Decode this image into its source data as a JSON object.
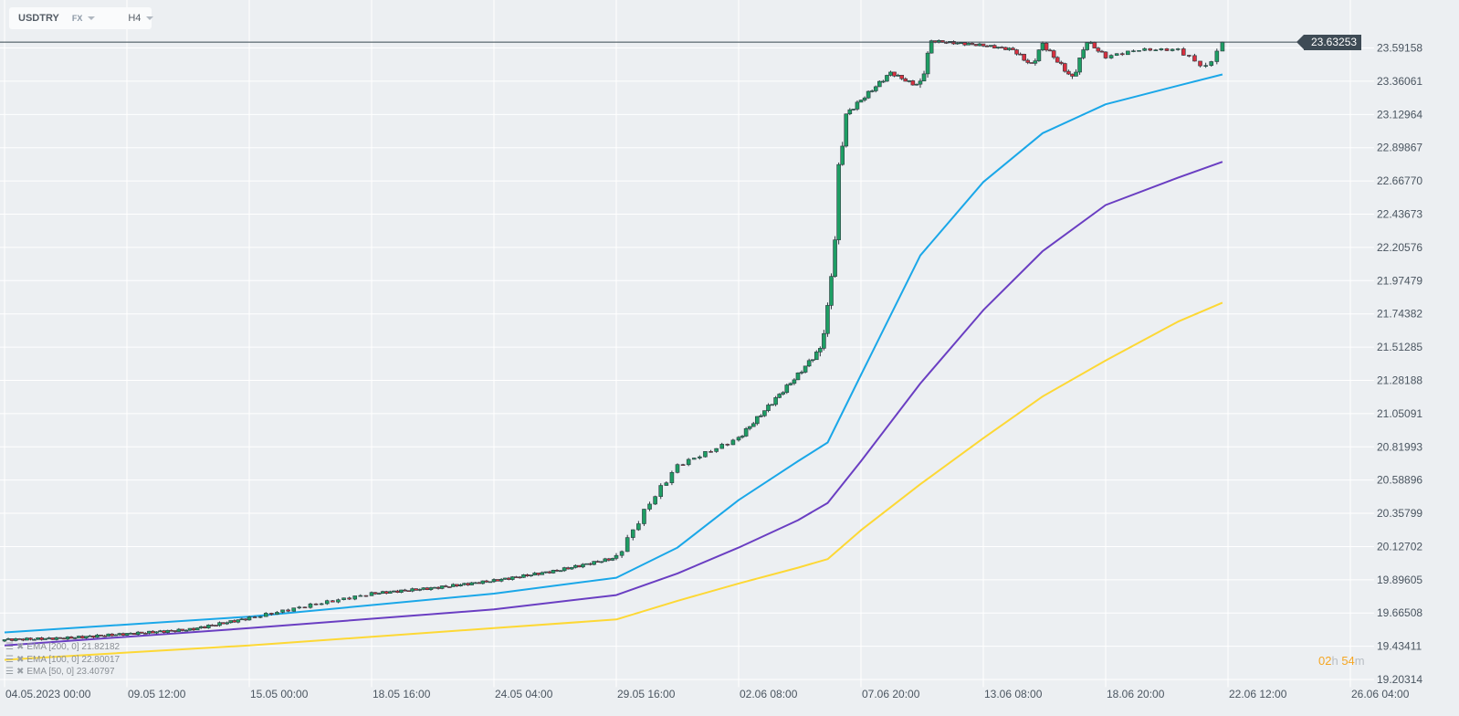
{
  "header": {
    "symbol": "USDTRY",
    "market": "FX",
    "timeframe": "H4"
  },
  "current_price": "23.63253",
  "countdown": {
    "hours": "02",
    "h_unit": "h",
    "minutes": "54",
    "m_unit": "m"
  },
  "legend": [
    {
      "label": "EMA [200, 0] 21.82182"
    },
    {
      "label": "EMA [100, 0] 22.80017"
    },
    {
      "label": "EMA [50, 0] 23.40797"
    }
  ],
  "colors": {
    "up": "#1e9e64",
    "down": "#d8303f",
    "ema50": "#1aa7e8",
    "ema100": "#6a3ec2",
    "ema200": "#fdd835",
    "price_line": "#37474f",
    "grid": "#ffffff",
    "background": "#eceff2"
  },
  "chart_data": {
    "type": "candlestick",
    "ylim": [
      19.15,
      23.925
    ],
    "y_ticks": [
      "23.59158",
      "23.36061",
      "23.12964",
      "22.89867",
      "22.66770",
      "22.43673",
      "22.20576",
      "21.97479",
      "21.74382",
      "21.51285",
      "21.28188",
      "21.05091",
      "20.81993",
      "20.58896",
      "20.35799",
      "20.12702",
      "19.89605",
      "19.66508",
      "19.43411",
      "19.20314"
    ],
    "x_ticks": [
      {
        "label": "04.05.2023  00:00",
        "date": "2023-05-04T00:00"
      },
      {
        "label": "09.05  12:00",
        "date": "2023-05-09T12:00"
      },
      {
        "label": "15.05  00:00",
        "date": "2023-05-15T00:00"
      },
      {
        "label": "18.05  16:00",
        "date": "2023-05-18T16:00"
      },
      {
        "label": "24.05  04:00",
        "date": "2023-05-24T04:00"
      },
      {
        "label": "29.05  16:00",
        "date": "2023-05-29T16:00"
      },
      {
        "label": "02.06  08:00",
        "date": "2023-06-02T08:00"
      },
      {
        "label": "07.06  20:00",
        "date": "2023-06-07T20:00"
      },
      {
        "label": "13.06  08:00",
        "date": "2023-06-13T08:00"
      },
      {
        "label": "18.06  20:00",
        "date": "2023-06-18T20:00"
      },
      {
        "label": "22.06  12:00",
        "date": "2023-06-22T12:00"
      },
      {
        "label": "26.06  04:00",
        "date": "2023-06-26T04:00"
      }
    ],
    "close_path": [
      [
        "2023-05-04T00:00",
        19.48
      ],
      [
        "2023-05-06T16:00",
        19.49
      ],
      [
        "2023-05-09T12:00",
        19.52
      ],
      [
        "2023-05-12T08:00",
        19.55
      ],
      [
        "2023-05-15T00:00",
        19.63
      ],
      [
        "2023-05-16T20:00",
        19.72
      ],
      [
        "2023-05-18T16:00",
        19.8
      ],
      [
        "2023-05-21T12:00",
        19.84
      ],
      [
        "2023-05-24T04:00",
        19.89
      ],
      [
        "2023-05-27T00:00",
        19.96
      ],
      [
        "2023-05-29T16:00",
        20.05
      ],
      [
        "2023-05-30T16:00",
        20.43
      ],
      [
        "2023-05-31T12:00",
        20.69
      ],
      [
        "2023-06-02T08:00",
        20.88
      ],
      [
        "2023-06-03T16:00",
        21.1
      ],
      [
        "2023-06-05T00:00",
        21.32
      ],
      [
        "2023-06-06T00:00",
        21.5
      ],
      [
        "2023-06-06T08:00",
        21.77
      ],
      [
        "2023-06-06T16:00",
        22.27
      ],
      [
        "2023-06-06T20:00",
        22.75
      ],
      [
        "2023-06-07T04:00",
        23.13
      ],
      [
        "2023-06-07T20:00",
        23.23
      ],
      [
        "2023-06-09T04:00",
        23.42
      ],
      [
        "2023-06-10T04:00",
        23.34
      ],
      [
        "2023-06-10T12:00",
        23.34
      ],
      [
        "2023-06-11T00:00",
        23.64
      ],
      [
        "2023-06-13T08:00",
        23.61
      ],
      [
        "2023-06-14T16:00",
        23.58
      ],
      [
        "2023-06-15T12:00",
        23.47
      ],
      [
        "2023-06-16T00:00",
        23.62
      ],
      [
        "2023-06-17T08:00",
        23.38
      ],
      [
        "2023-06-18T00:00",
        23.64
      ],
      [
        "2023-06-18T20:00",
        23.53
      ],
      [
        "2023-06-19T20:00",
        23.58
      ],
      [
        "2023-06-21T00:00",
        23.58
      ],
      [
        "2023-06-21T20:00",
        23.45
      ],
      [
        "2023-06-22T08:00",
        23.63253
      ]
    ],
    "series": [
      {
        "name": "EMA [50, 0]",
        "color_key": "ema50",
        "points": [
          [
            "2023-05-04T00:00",
            19.53
          ],
          [
            "2023-05-15T00:00",
            19.64
          ],
          [
            "2023-05-24T04:00",
            19.8
          ],
          [
            "2023-05-29T16:00",
            19.91
          ],
          [
            "2023-05-31T12:00",
            20.12
          ],
          [
            "2023-06-02T08:00",
            20.45
          ],
          [
            "2023-06-05T00:00",
            20.72
          ],
          [
            "2023-06-06T08:00",
            20.85
          ],
          [
            "2023-06-07T20:00",
            21.32
          ],
          [
            "2023-06-10T12:00",
            22.15
          ],
          [
            "2023-06-13T08:00",
            22.66
          ],
          [
            "2023-06-16T00:00",
            23.0
          ],
          [
            "2023-06-18T20:00",
            23.2
          ],
          [
            "2023-06-21T00:00",
            23.33
          ],
          [
            "2023-06-22T08:00",
            23.40797
          ]
        ]
      },
      {
        "name": "EMA [100, 0]",
        "color_key": "ema100",
        "points": [
          [
            "2023-05-04T00:00",
            19.44
          ],
          [
            "2023-05-15T00:00",
            19.56
          ],
          [
            "2023-05-24T04:00",
            19.69
          ],
          [
            "2023-05-29T16:00",
            19.79
          ],
          [
            "2023-05-31T12:00",
            19.94
          ],
          [
            "2023-06-02T08:00",
            20.12
          ],
          [
            "2023-06-05T00:00",
            20.31
          ],
          [
            "2023-06-06T08:00",
            20.43
          ],
          [
            "2023-06-07T20:00",
            20.72
          ],
          [
            "2023-06-10T12:00",
            21.26
          ],
          [
            "2023-06-13T08:00",
            21.77
          ],
          [
            "2023-06-16T00:00",
            22.18
          ],
          [
            "2023-06-18T20:00",
            22.5
          ],
          [
            "2023-06-21T00:00",
            22.69
          ],
          [
            "2023-06-22T08:00",
            22.80017
          ]
        ]
      },
      {
        "name": "EMA [200, 0]",
        "color_key": "ema200",
        "points": [
          [
            "2023-05-04T00:00",
            19.34
          ],
          [
            "2023-05-15T00:00",
            19.44
          ],
          [
            "2023-05-24T04:00",
            19.56
          ],
          [
            "2023-05-29T16:00",
            19.62
          ],
          [
            "2023-05-31T12:00",
            19.75
          ],
          [
            "2023-06-02T08:00",
            19.87
          ],
          [
            "2023-06-05T00:00",
            19.98
          ],
          [
            "2023-06-06T08:00",
            20.04
          ],
          [
            "2023-06-07T20:00",
            20.24
          ],
          [
            "2023-06-10T12:00",
            20.56
          ],
          [
            "2023-06-13T08:00",
            20.88
          ],
          [
            "2023-06-16T00:00",
            21.17
          ],
          [
            "2023-06-18T20:00",
            21.42
          ],
          [
            "2023-06-21T00:00",
            21.69
          ],
          [
            "2023-06-22T08:00",
            21.82182
          ]
        ]
      }
    ],
    "bar_interval_hours": 4,
    "grid": true
  }
}
